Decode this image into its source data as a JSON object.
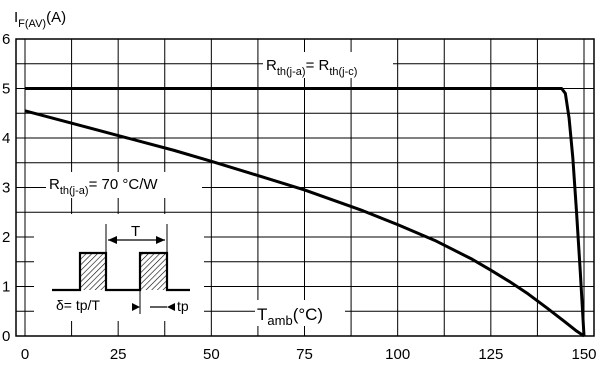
{
  "chart_data": {
    "type": "line",
    "ylabel_main": "I",
    "ylabel_sub": "F(AV)",
    "ylabel_unit": "(A)",
    "xlabel_main": "T",
    "xlabel_sub": "amb",
    "xlabel_unit": "(°C)",
    "xlim": [
      0,
      150
    ],
    "ylim": [
      0,
      6
    ],
    "xticks": [
      0,
      25,
      50,
      75,
      100,
      125,
      150
    ],
    "yticks": [
      0,
      1,
      2,
      3,
      4,
      5,
      6
    ],
    "grid": true,
    "series": [
      {
        "label_main": "R",
        "label_sub": "th(j-a)",
        "label_eq": "= R",
        "label_sub2": "th(j-c)",
        "x": [
          0,
          25,
          50,
          75,
          100,
          125,
          140,
          144,
          145,
          146,
          147,
          148,
          149,
          150
        ],
        "y": [
          5,
          5,
          5,
          5,
          5,
          5,
          5,
          5,
          4.9,
          4.4,
          3.6,
          2.5,
          1.3,
          0
        ]
      },
      {
        "label_main": "R",
        "label_sub": "th(j-a)",
        "label_rest": "= 70 °C/W",
        "x": [
          0,
          10,
          25,
          40,
          50,
          60,
          75,
          90,
          100,
          110,
          120,
          125,
          130,
          135,
          140,
          145,
          148,
          150
        ],
        "y": [
          4.55,
          4.35,
          4.05,
          3.75,
          3.53,
          3.3,
          2.95,
          2.55,
          2.25,
          1.93,
          1.55,
          1.33,
          1.1,
          0.85,
          0.57,
          0.28,
          0.1,
          0
        ]
      }
    ],
    "inset": {
      "period_label": "T",
      "duty_label": "δ= tp/T",
      "tp_label": "tp"
    }
  }
}
